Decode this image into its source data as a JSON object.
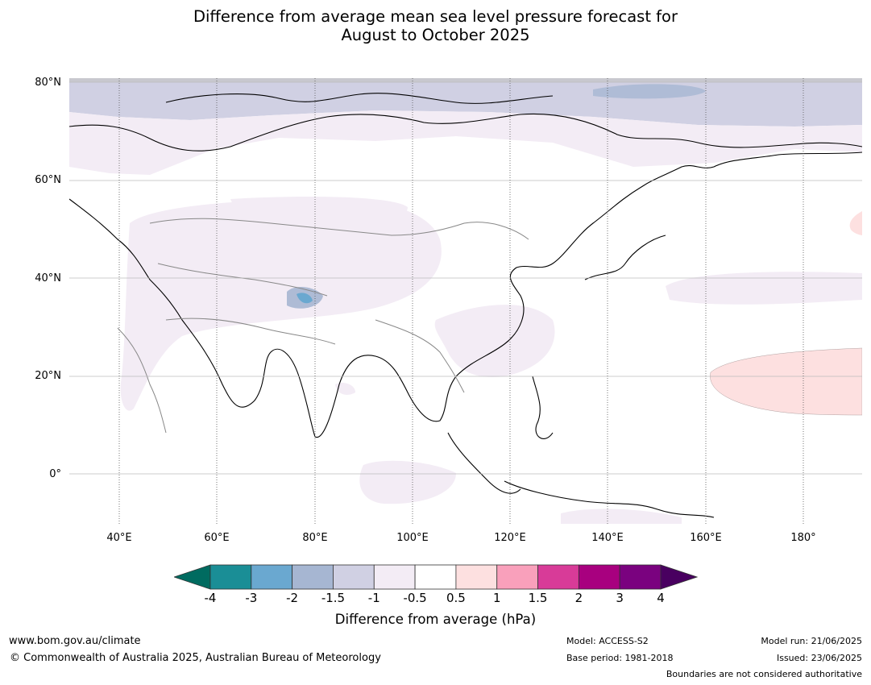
{
  "title_line1": "Difference from average mean sea level pressure forecast for",
  "title_line2": "August to October 2025",
  "lat_labels": [
    "80°N",
    "60°N",
    "40°N",
    "20°N",
    "0°"
  ],
  "lon_labels": [
    "40°E",
    "60°E",
    "80°E",
    "100°E",
    "120°E",
    "140°E",
    "160°E",
    "180°"
  ],
  "colorbar": {
    "ticks": [
      "-4",
      "-3",
      "-2",
      "-1.5",
      "-1",
      "-0.5",
      "0.5",
      "1",
      "1.5",
      "2",
      "3",
      "4"
    ],
    "colors": [
      "#1a8e96",
      "#6aa8d0",
      "#a6b6d2",
      "#d0d0e3",
      "#f3ecf5",
      "#ffffff",
      "#fde0e0",
      "#f9a0bb",
      "#d83b98",
      "#a8007f",
      "#7a027f"
    ],
    "low_extend_color": "#006b60",
    "high_extend_color": "#490060",
    "title": "Difference from average (hPa)"
  },
  "footer": {
    "url": "www.bom.gov.au/climate",
    "copyright": "© Commonwealth of Australia 2025, Australian Bureau of Meteorology",
    "model": "Model: ACCESS-S2",
    "base_period": "Base period: 1981-2018",
    "model_run": "Model run: 21/06/2025",
    "issued": "Issued: 23/06/2025",
    "disclaimer": "Boundaries are not considered authoritative"
  }
}
